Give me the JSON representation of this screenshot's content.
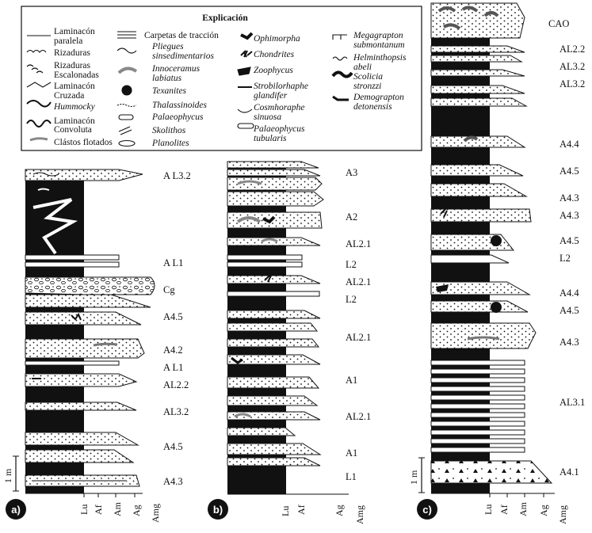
{
  "legend": {
    "title": "Explicación",
    "col1": [
      "Laminacón",
      "paralela",
      "Rizaduras",
      "Rizaduras",
      "Escalonadas",
      "Laminacón",
      "Cruzada",
      "Hummocky",
      "Laminacón",
      "Convoluta",
      "Clástos flotados"
    ],
    "col2": [
      "Carpetas de tracción",
      "Pliegues",
      "sinsedimentarios",
      "Innoceramus",
      "labiatus",
      "Texanites",
      "Thalassinoides",
      "Palaeophycus",
      "Skolithos",
      "Planolites"
    ],
    "col3": [
      "Ophimorpha",
      "Chondrites",
      "Zoophycus",
      "Strobilorhaphe",
      "glandifer",
      "Cosmhoraphe",
      "sinuosa",
      "Palaeophycus",
      "tubularis"
    ],
    "col4": [
      "Megagrapton",
      "submontanum",
      "Helminthopsis",
      "abeli",
      "Scolicia",
      "stronzzi",
      "Demograpton",
      "detonensis"
    ]
  },
  "columns": {
    "a": {
      "panel": "a)",
      "scale": "1 m",
      "axis": [
        "Lu",
        "Af",
        "Am",
        "Ag",
        "Amg"
      ],
      "units": [
        "A L3.2",
        "A L1",
        "Cg",
        "A4.5",
        "A4.2",
        "A L1",
        "AL2.2",
        "AL3.2",
        "A4.5",
        "A4.3"
      ]
    },
    "b": {
      "panel": "b)",
      "axis": [
        "Lu",
        "Af",
        "Ag",
        "Amg"
      ],
      "units": [
        "A3",
        "A2",
        "AL2.1",
        "L2",
        "AL2.1",
        "L2",
        "AL2.1",
        "A1",
        "AL2.1",
        "A1",
        "L1"
      ]
    },
    "c": {
      "panel": "c)",
      "scale": "1 m",
      "axis": [
        "Lu",
        "Af",
        "Am",
        "Ag",
        "Amg"
      ],
      "units": [
        "CAO",
        "AL2.2",
        "AL3.2",
        "AL3.2",
        "A4.4",
        "A4.5",
        "A4.3",
        "A4.3",
        "A4.5",
        "L2",
        "A4.4",
        "A4.5",
        "A4.3",
        "AL3.1",
        "A4.1"
      ]
    }
  }
}
